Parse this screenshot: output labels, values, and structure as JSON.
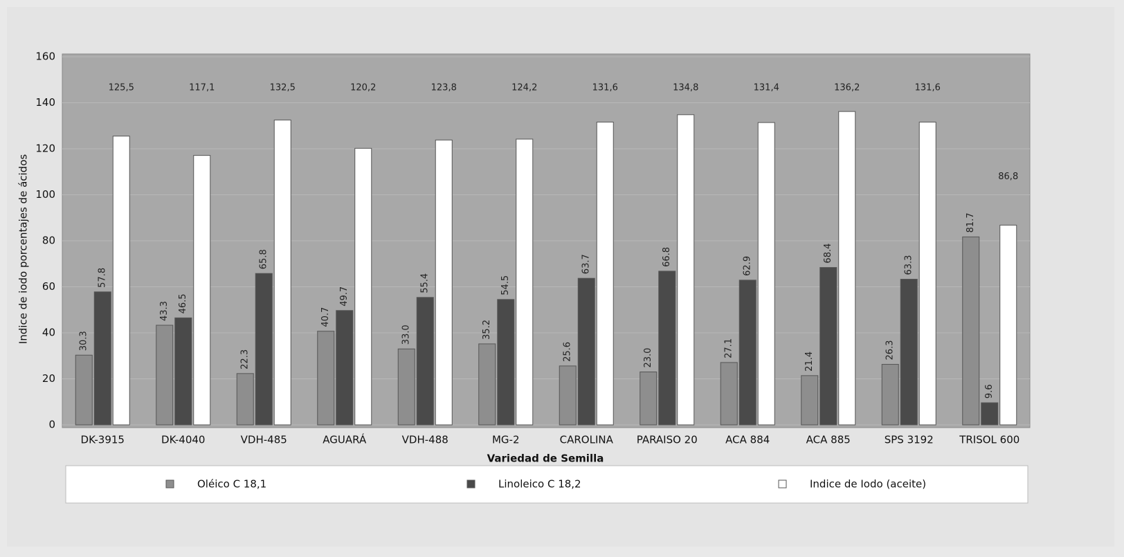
{
  "chart_data": {
    "type": "bar",
    "x_label": "Variedad de Semilla",
    "y_label": "Indice de iodo porcentajes de ácidos",
    "categories": [
      "DK-3915",
      "DK-4040",
      "VDH-485",
      "AGUARÁ",
      "VDH-488",
      "MG-2",
      "CAROLINA",
      "PARAISO 20",
      "ACA 884",
      "ACA 885",
      "SPS 3192",
      "TRISOL 600"
    ],
    "series": [
      {
        "name": "Oléico C 18,1",
        "color": "#8e8e8e",
        "values": [
          30.3,
          43.3,
          22.3,
          40.7,
          33.0,
          35.2,
          25.6,
          23.0,
          27.1,
          21.4,
          26.3,
          81.7
        ],
        "value_labels": [
          "30.3",
          "43.3",
          "22.3",
          "40.7",
          "33.0",
          "35.2",
          "25.6",
          "23.0",
          "27.1",
          "21.4",
          "26.3",
          "81.7"
        ]
      },
      {
        "name": "Linoleico C 18,2",
        "color": "#4a4a4a",
        "values": [
          57.8,
          46.5,
          65.8,
          49.7,
          55.4,
          54.5,
          63.7,
          66.8,
          62.9,
          68.4,
          63.3,
          9.6
        ],
        "value_labels": [
          "57.8",
          "46.5",
          "65.8",
          "49.7",
          "55.4",
          "54.5",
          "63.7",
          "66.8",
          "62.9",
          "68.4",
          "63.3",
          "9.6"
        ]
      },
      {
        "name": "Indice de Iodo (aceite)",
        "color": "#ffffff",
        "values": [
          125.5,
          117.1,
          132.5,
          120.2,
          123.8,
          124.2,
          131.6,
          134.8,
          131.4,
          136.2,
          131.6,
          86.8
        ],
        "value_labels": [
          "125,5",
          "117,1",
          "132,5",
          "120,2",
          "123,8",
          "124,2",
          "131,6",
          "134,8",
          "131,4",
          "136,2",
          "131,6",
          "86,8"
        ]
      }
    ],
    "ylim": [
      0,
      160
    ],
    "yticks": [
      0,
      20,
      40,
      60,
      80,
      100,
      120,
      140,
      160
    ],
    "grid": true
  }
}
